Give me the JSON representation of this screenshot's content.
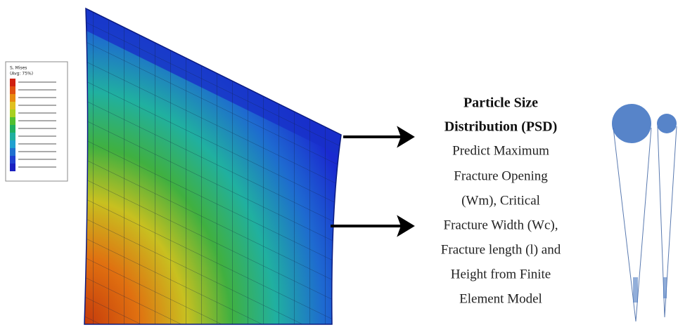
{
  "legend": {
    "title": "S, Mises",
    "subtitle": "(Avg: 75%)"
  },
  "text": {
    "heading": [
      "Particle Size",
      "Distribution (PSD)"
    ],
    "body": [
      "Predict Maximum",
      "Fracture Opening",
      "(Wm), Critical",
      "Fracture Width (Wc),",
      "Fracture length (l) and",
      "Height from Finite",
      "Element Model"
    ]
  }
}
